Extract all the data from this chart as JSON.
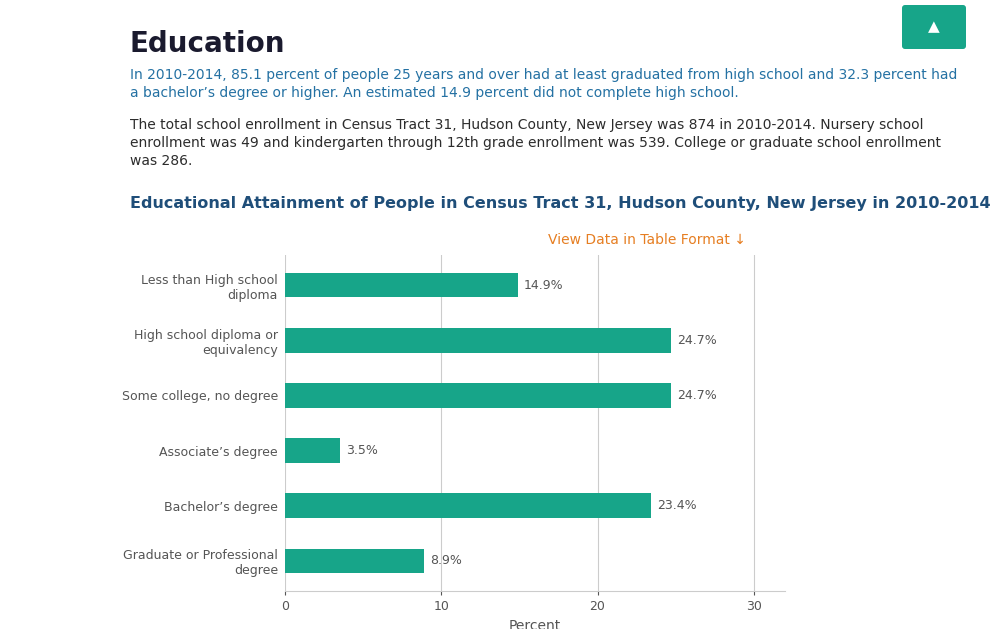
{
  "title": "Educational Attainment of People in Census Tract 31, Hudson County, New Jersey in 2010-2014",
  "title_color": "#1f4e79",
  "title_fontsize": 11.5,
  "header": "Education",
  "header_fontsize": 20,
  "header_color": "#1a1a2e",
  "para1_line1": "In 2010-2014, 85.1 percent of people 25 years and over had at least graduated from high school and 32.3 percent had",
  "para1_line2": "a bachelor’s degree or higher. An estimated 14.9 percent did not complete high school.",
  "para1_color": "#2471a3",
  "para2_line1": "The total school enrollment in Census Tract 31, Hudson County, New Jersey was 874 in 2010-2014. Nursery school",
  "para2_line2": "enrollment was 49 and kindergarten through 12th grade enrollment was 539. College or graduate school enrollment",
  "para2_line3": "was 286.",
  "para2_color": "#2c2c2c",
  "link_text": "View Data in Table Format ↓",
  "link_color": "#e67e22",
  "categories": [
    "Less than High school\ndiploma",
    "High school diploma or\nequivalency",
    "Some college, no degree",
    "Associate’s degree",
    "Bachelor’s degree",
    "Graduate or Professional\ndegree"
  ],
  "values": [
    14.9,
    24.7,
    24.7,
    3.5,
    23.4,
    8.9
  ],
  "bar_color": "#17a589",
  "bar_height": 0.45,
  "xlim": [
    0,
    32
  ],
  "xticks": [
    0,
    10,
    20,
    30
  ],
  "xlabel": "Percent",
  "xlabel_fontsize": 10,
  "value_labels": [
    "14.9%",
    "24.7%",
    "24.7%",
    "3.5%",
    "23.4%",
    "8.9%"
  ],
  "value_label_color": "#555555",
  "value_label_fontsize": 9,
  "ytick_fontsize": 9,
  "ytick_color": "#555555",
  "background_color": "#ffffff",
  "grid_color": "#cccccc",
  "teal_button_color": "#17a589",
  "fig_width": 10.0,
  "fig_height": 6.29
}
